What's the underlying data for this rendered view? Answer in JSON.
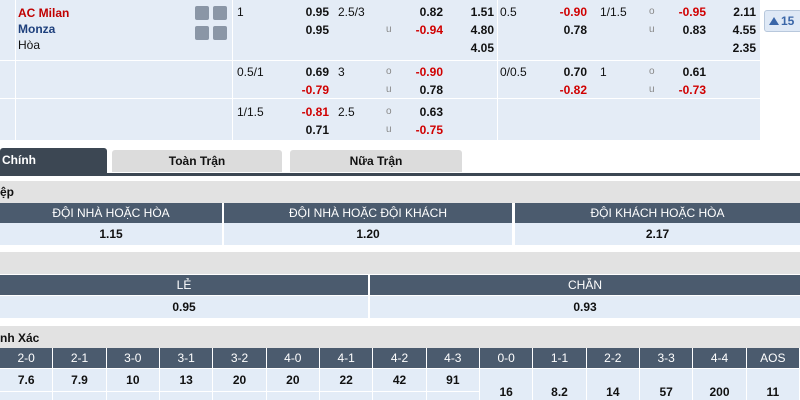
{
  "match": {
    "home": "AC Milan",
    "away": "Monza",
    "draw": "Hòa",
    "more_count": "15"
  },
  "odds": {
    "rows": [
      {
        "ft_hdp": "1",
        "ft_hdp_home": "0.95",
        "ft_hdp_away": "0.95",
        "ft_ou": "2.5/3",
        "ft_over": "0.82",
        "ft_under_mark": "u",
        "ft_under": "-0.94",
        "ft_1x2": [
          "1.51",
          "4.80",
          "4.05"
        ],
        "h1_hdp": "0.5",
        "h1_hdp_home": "-0.90",
        "h1_hdp_away": "0.78",
        "h1_ou": "1/1.5",
        "h1_over_mark": "o",
        "h1_over": "-0.95",
        "h1_under_mark": "u",
        "h1_under": "0.83",
        "h1_1x2": [
          "2.11",
          "4.55",
          "2.35"
        ]
      },
      {
        "ft_hdp": "0.5/1",
        "ft_hdp_home": "0.69",
        "ft_hdp_away": "-0.79",
        "ft_ou": "3",
        "ft_over_mark": "o",
        "ft_over": "-0.90",
        "ft_under_mark": "u",
        "ft_under": "0.78",
        "h1_hdp": "0/0.5",
        "h1_hdp_home": "0.70",
        "h1_hdp_away": "-0.82",
        "h1_ou": "1",
        "h1_over_mark": "o",
        "h1_over": "0.61",
        "h1_under_mark": "u",
        "h1_under": "-0.73"
      },
      {
        "ft_hdp": "1/1.5",
        "ft_hdp_home": "-0.81",
        "ft_hdp_away": "0.71",
        "ft_ou": "2.5",
        "ft_over_mark": "o",
        "ft_over": "0.63",
        "ft_under_mark": "u",
        "ft_under": "-0.75"
      }
    ]
  },
  "tabs": [
    "Chính",
    "Toàn Trận",
    "Nữa Trận"
  ],
  "double_chance": {
    "title": "ệp",
    "headers": [
      "ĐỘI NHÀ HOẶC HÒA",
      "ĐỘI NHÀ HOẶC ĐỘI KHÁCH",
      "ĐỘI KHÁCH HOẶC HÒA"
    ],
    "values": [
      "1.15",
      "1.20",
      "2.17"
    ]
  },
  "odd_even": {
    "headers": [
      "LẺ",
      "CHẴN"
    ],
    "values": [
      "0.95",
      "0.93"
    ]
  },
  "correct_score": {
    "title": "nh Xác",
    "headers": [
      "2-0",
      "2-1",
      "3-0",
      "3-1",
      "3-2",
      "4-0",
      "4-1",
      "4-2",
      "4-3",
      "0-0",
      "1-1",
      "2-2",
      "3-3",
      "4-4",
      "AOS"
    ],
    "values": [
      "7.6",
      "7.9",
      "10",
      "13",
      "20",
      "20",
      "22",
      "42",
      "91",
      "16",
      "8.2",
      "14",
      "57",
      "200",
      "11"
    ]
  }
}
